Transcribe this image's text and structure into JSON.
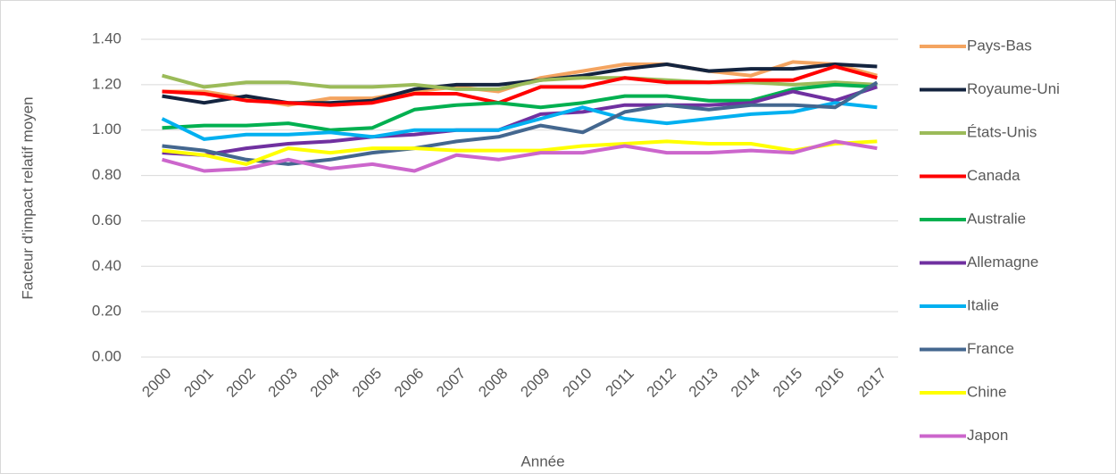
{
  "chart_data": {
    "type": "line",
    "x_label": "Année",
    "y_label": "Facteur d'impact relatif moyen",
    "categories": [
      "2000",
      "2001",
      "2002",
      "2003",
      "2004",
      "2005",
      "2006",
      "2007",
      "2008",
      "2009",
      "2010",
      "2011",
      "2012",
      "2013",
      "2014",
      "2015",
      "2016",
      "2017"
    ],
    "ylim": [
      0,
      1.4
    ],
    "yticks": [
      {
        "value": 0,
        "label": "0.00"
      },
      {
        "value": 0.2,
        "label": "0.20"
      },
      {
        "value": 0.4,
        "label": "0.40"
      },
      {
        "value": 0.6,
        "label": "0.60"
      },
      {
        "value": 0.8,
        "label": "0.80"
      },
      {
        "value": 1,
        "label": "1.00"
      },
      {
        "value": 1.2,
        "label": "1.20"
      },
      {
        "value": 1.4,
        "label": "1.40"
      }
    ],
    "grid": true,
    "legend": "right",
    "series": [
      {
        "name": "Pays-Bas",
        "color": "#f4a460",
        "values": [
          1.17,
          1.17,
          1.14,
          1.11,
          1.14,
          1.14,
          1.17,
          1.19,
          1.17,
          1.23,
          1.26,
          1.29,
          1.29,
          1.26,
          1.24,
          1.3,
          1.29,
          1.24
        ]
      },
      {
        "name": "Royaume-Uni",
        "color": "#14243f",
        "values": [
          1.15,
          1.12,
          1.15,
          1.12,
          1.12,
          1.13,
          1.18,
          1.2,
          1.2,
          1.22,
          1.24,
          1.27,
          1.29,
          1.26,
          1.27,
          1.27,
          1.29,
          1.28
        ]
      },
      {
        "name": "États-Unis",
        "color": "#9bbb59",
        "values": [
          1.24,
          1.19,
          1.21,
          1.21,
          1.19,
          1.19,
          1.2,
          1.18,
          1.18,
          1.22,
          1.23,
          1.23,
          1.22,
          1.21,
          1.21,
          1.2,
          1.21,
          1.2
        ]
      },
      {
        "name": "Canada",
        "color": "#ff0000",
        "values": [
          1.17,
          1.16,
          1.13,
          1.12,
          1.11,
          1.12,
          1.16,
          1.16,
          1.12,
          1.19,
          1.19,
          1.23,
          1.21,
          1.21,
          1.22,
          1.22,
          1.28,
          1.23
        ]
      },
      {
        "name": "Australie",
        "color": "#00b050",
        "values": [
          1.01,
          1.02,
          1.02,
          1.03,
          1.0,
          1.01,
          1.09,
          1.11,
          1.12,
          1.1,
          1.12,
          1.15,
          1.15,
          1.13,
          1.13,
          1.18,
          1.2,
          1.19
        ]
      },
      {
        "name": "Allemagne",
        "color": "#7030a0",
        "values": [
          0.9,
          0.89,
          0.92,
          0.94,
          0.95,
          0.97,
          0.98,
          1.0,
          1.0,
          1.07,
          1.08,
          1.11,
          1.11,
          1.11,
          1.12,
          1.17,
          1.13,
          1.19
        ]
      },
      {
        "name": "Italie",
        "color": "#00b0f0",
        "values": [
          1.05,
          0.96,
          0.98,
          0.98,
          0.99,
          0.97,
          1.0,
          1.0,
          1.0,
          1.05,
          1.1,
          1.05,
          1.03,
          1.05,
          1.07,
          1.08,
          1.12,
          1.1
        ]
      },
      {
        "name": "France",
        "color": "#44678f",
        "values": [
          0.93,
          0.91,
          0.87,
          0.85,
          0.87,
          0.9,
          0.92,
          0.95,
          0.97,
          1.02,
          0.99,
          1.08,
          1.11,
          1.09,
          1.11,
          1.11,
          1.1,
          1.21
        ]
      },
      {
        "name": "Chine",
        "color": "#ffff00",
        "values": [
          0.91,
          0.89,
          0.85,
          0.92,
          0.9,
          0.92,
          0.92,
          0.91,
          0.91,
          0.91,
          0.93,
          0.94,
          0.95,
          0.94,
          0.94,
          0.91,
          0.94,
          0.95
        ]
      },
      {
        "name": "Japon",
        "color": "#cc66cc",
        "values": [
          0.87,
          0.82,
          0.83,
          0.87,
          0.83,
          0.85,
          0.82,
          0.89,
          0.87,
          0.9,
          0.9,
          0.93,
          0.9,
          0.9,
          0.91,
          0.9,
          0.95,
          0.92
        ]
      }
    ]
  }
}
